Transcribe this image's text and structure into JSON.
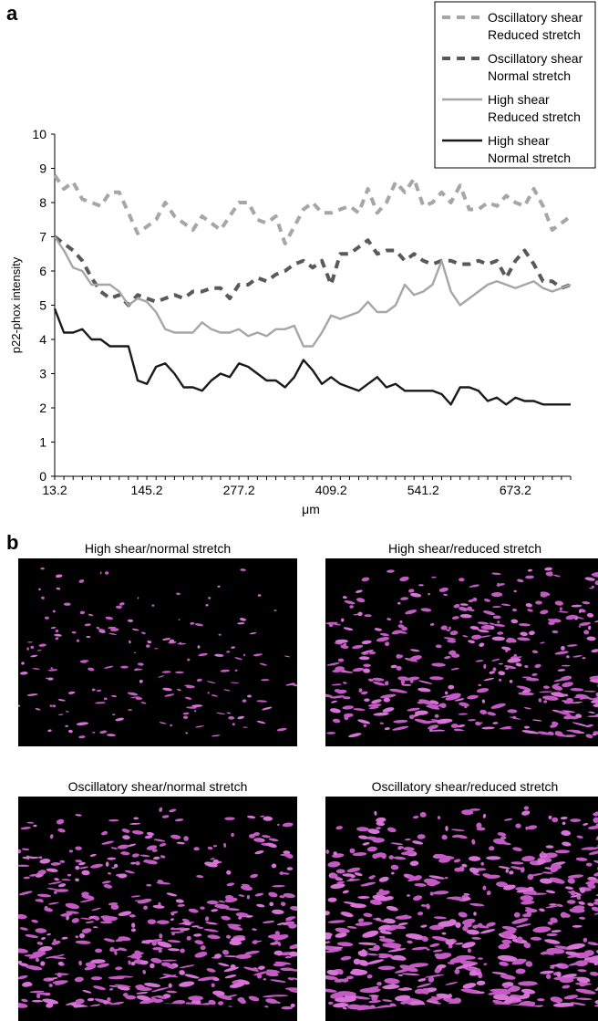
{
  "panel_a_label": "a",
  "panel_b_label": "b",
  "chart_data": {
    "type": "line",
    "title": "",
    "xlabel": "μm",
    "ylabel": "p22-phox intensity",
    "ylim": [
      0,
      10
    ],
    "yticks": [
      0,
      1,
      2,
      3,
      4,
      5,
      6,
      7,
      8,
      9,
      10
    ],
    "x_tick_labels": [
      "13.2",
      "145.2",
      "277.2",
      "409.2",
      "541.2",
      "673.2"
    ],
    "x_first": 13.2,
    "x_step": 13.2,
    "grid": false,
    "legend_position": "top-right",
    "series": [
      {
        "name": "Oscillatory shear Reduced stretch",
        "legend_lines": [
          "Oscillatory shear",
          "Reduced stretch"
        ],
        "style": "dashed",
        "color": "#a6a6a6",
        "values": [
          8.8,
          8.4,
          8.6,
          8.1,
          8.0,
          7.9,
          8.3,
          8.3,
          7.7,
          7.1,
          7.3,
          7.5,
          8.0,
          7.6,
          7.4,
          7.2,
          7.6,
          7.4,
          7.2,
          7.6,
          8.0,
          8.0,
          7.5,
          7.4,
          7.6,
          6.8,
          7.3,
          7.8,
          8.0,
          7.7,
          7.7,
          7.8,
          7.9,
          7.7,
          8.4,
          7.7,
          8.0,
          8.6,
          8.3,
          8.7,
          7.9,
          8.0,
          8.3,
          8.0,
          8.5,
          7.8,
          7.8,
          8.0,
          7.9,
          8.2,
          8.0,
          7.9,
          8.4,
          7.9,
          7.2,
          7.4,
          7.6
        ]
      },
      {
        "name": "Oscillatory shear Normal stretch",
        "legend_lines": [
          "Oscillatory shear",
          "Normal stretch"
        ],
        "style": "dashed",
        "color": "#595959",
        "values": [
          7.0,
          6.8,
          6.6,
          6.3,
          5.8,
          5.4,
          5.2,
          5.3,
          5.0,
          5.3,
          5.2,
          5.1,
          5.2,
          5.3,
          5.2,
          5.4,
          5.4,
          5.5,
          5.5,
          5.2,
          5.6,
          5.6,
          5.8,
          5.7,
          5.9,
          6.0,
          6.2,
          6.3,
          6.1,
          6.3,
          5.6,
          6.5,
          6.5,
          6.7,
          6.9,
          6.5,
          6.6,
          6.6,
          6.3,
          6.5,
          6.3,
          6.2,
          6.3,
          6.3,
          6.2,
          6.2,
          6.3,
          6.2,
          6.3,
          5.8,
          6.3,
          6.6,
          6.2,
          5.7,
          5.7,
          5.5,
          5.6
        ]
      },
      {
        "name": "High shear Reduced stretch",
        "legend_lines": [
          "High shear",
          "Reduced stretch"
        ],
        "style": "solid",
        "color": "#a6a6a6",
        "values": [
          7.0,
          6.6,
          6.1,
          6.0,
          5.6,
          5.6,
          5.6,
          5.4,
          5.0,
          5.2,
          5.1,
          4.8,
          4.3,
          4.2,
          4.2,
          4.2,
          4.5,
          4.3,
          4.2,
          4.2,
          4.3,
          4.1,
          4.2,
          4.1,
          4.3,
          4.3,
          4.4,
          3.8,
          3.8,
          4.2,
          4.7,
          4.6,
          4.7,
          4.8,
          5.1,
          4.8,
          4.8,
          5.0,
          5.6,
          5.3,
          5.4,
          5.6,
          6.3,
          5.4,
          5.0,
          5.2,
          5.4,
          5.6,
          5.7,
          5.6,
          5.5,
          5.6,
          5.7,
          5.5,
          5.4,
          5.5,
          5.6
        ]
      },
      {
        "name": "High shear Normal stretch",
        "legend_lines": [
          "High shear",
          "Normal stretch"
        ],
        "style": "solid",
        "color": "#1a1a1a",
        "values": [
          4.9,
          4.2,
          4.2,
          4.3,
          4.0,
          4.0,
          3.8,
          3.8,
          3.8,
          2.8,
          2.7,
          3.2,
          3.3,
          3.0,
          2.6,
          2.6,
          2.5,
          2.8,
          3.0,
          2.9,
          3.3,
          3.2,
          3.0,
          2.8,
          2.8,
          2.6,
          2.9,
          3.4,
          3.1,
          2.7,
          2.9,
          2.7,
          2.6,
          2.5,
          2.7,
          2.9,
          2.6,
          2.7,
          2.5,
          2.5,
          2.5,
          2.5,
          2.4,
          2.1,
          2.6,
          2.6,
          2.5,
          2.2,
          2.3,
          2.1,
          2.3,
          2.2,
          2.2,
          2.1,
          2.1,
          2.1,
          2.1
        ]
      }
    ]
  },
  "micrographs": [
    {
      "title": "High shear/normal stretch",
      "density": 0.32,
      "scale": 0.8
    },
    {
      "title": "High shear/reduced stretch",
      "density": 0.72,
      "scale": 1.15
    },
    {
      "title": "Oscillatory shear/normal stretch",
      "density": 0.85,
      "scale": 1.25
    },
    {
      "title": "Oscillatory shear/reduced stretch",
      "density": 1.0,
      "scale": 1.45
    }
  ],
  "colors": {
    "stain": "#c45bc4",
    "stain_bright": "#d873d8",
    "micro_bg": "#000000"
  }
}
